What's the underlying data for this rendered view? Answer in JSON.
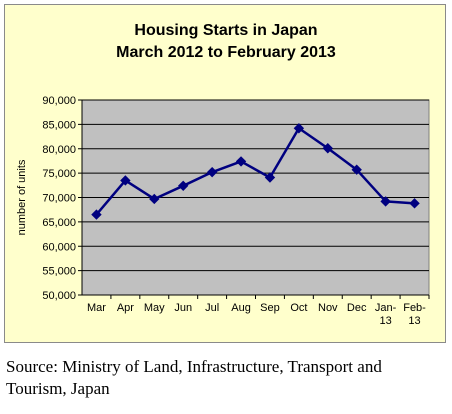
{
  "chart_data": {
    "type": "line",
    "title_lines": [
      "Housing Starts in Japan",
      "March 2012  to February 2013"
    ],
    "ylabel": "number of units",
    "xlabel": "",
    "categories": [
      "Mar",
      "Apr",
      "May",
      "Jun",
      "Jul",
      "Aug",
      "Sep",
      "Oct",
      "Nov",
      "Dec",
      "Jan-13",
      "Feb-13"
    ],
    "category_lines": [
      [
        "Mar"
      ],
      [
        "Apr"
      ],
      [
        "May"
      ],
      [
        "Jun"
      ],
      [
        "Jul"
      ],
      [
        "Aug"
      ],
      [
        "Sep"
      ],
      [
        "Oct"
      ],
      [
        "Nov"
      ],
      [
        "Dec"
      ],
      [
        "Jan-",
        "13"
      ],
      [
        "Feb-",
        "13"
      ]
    ],
    "values": [
      66500,
      73500,
      69700,
      72400,
      75200,
      77400,
      74100,
      84200,
      80100,
      75700,
      69200,
      68800
    ],
    "ylim": [
      50000,
      90000
    ],
    "yticks": [
      50000,
      55000,
      60000,
      65000,
      70000,
      75000,
      80000,
      85000,
      90000
    ],
    "ytick_labels": [
      "50,000",
      "55,000",
      "60,000",
      "65,000",
      "70,000",
      "75,000",
      "80,000",
      "85,000",
      "90,000"
    ],
    "grid": true,
    "legend": "none",
    "colors": {
      "line": "#000080",
      "plot_bg": "#c0c0c0",
      "chart_bg": "#ffffcc"
    }
  },
  "source": {
    "label": "Source:",
    "text": " Ministry of Land, Infrastructure, Transport and Tourism, Japan"
  }
}
